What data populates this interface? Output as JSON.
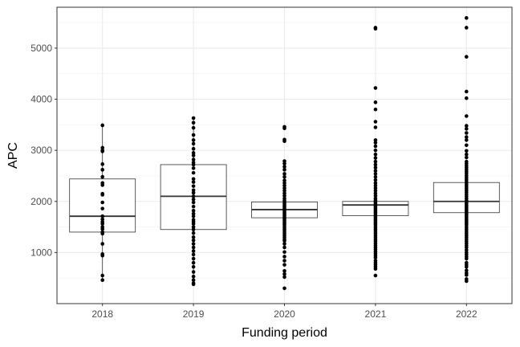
{
  "chart_data": {
    "type": "box",
    "xlabel": "Funding period",
    "ylabel": "APC",
    "ylim": [
      0,
      5800
    ],
    "yticks": [
      1000,
      2000,
      3000,
      4000,
      5000
    ],
    "grid": true,
    "categories": [
      "2018",
      "2019",
      "2020",
      "2021",
      "2022"
    ],
    "boxes": [
      {
        "category": "2018",
        "q1": 1400,
        "median": 1710,
        "q3": 2440,
        "whisker_low": 460,
        "whisker_high": 3480
      },
      {
        "category": "2019",
        "q1": 1450,
        "median": 2100,
        "q3": 2720,
        "whisker_low": 380,
        "whisker_high": 3620
      },
      {
        "category": "2020",
        "q1": 1680,
        "median": 1840,
        "q3": 1990,
        "whisker_low": 1260,
        "whisker_high": 2410
      },
      {
        "category": "2021",
        "q1": 1720,
        "median": 1930,
        "q3": 2000,
        "whisker_low": 1540,
        "whisker_high": 2240
      },
      {
        "category": "2022",
        "q1": 1780,
        "median": 2000,
        "q3": 2370,
        "whisker_low": 1410,
        "whisker_high": 2740
      }
    ],
    "points": [
      {
        "category": "2018",
        "values": [
          3490,
          3050,
          3000,
          2980,
          2730,
          2620,
          2480,
          2360,
          2320,
          2150,
          2130,
          1980,
          1860,
          1710,
          1650,
          1600,
          1560,
          1500,
          1460,
          1400,
          1370,
          1170,
          970,
          940,
          550,
          460
        ]
      },
      {
        "category": "2019",
        "values": [
          3630,
          3540,
          3440,
          3300,
          3200,
          3130,
          3030,
          2950,
          2900,
          2820,
          2760,
          2720,
          2650,
          2560,
          2440,
          2380,
          2300,
          2220,
          2170,
          2100,
          2040,
          1980,
          1900,
          1820,
          1760,
          1710,
          1640,
          1600,
          1560,
          1500,
          1450,
          1380,
          1300,
          1240,
          1170,
          1100,
          1030,
          960,
          880,
          800,
          720,
          620,
          530,
          460,
          400,
          380
        ]
      },
      {
        "category": "2020",
        "values": [
          3460,
          3430,
          3210,
          3180,
          2790,
          2740,
          2680,
          2620,
          2540,
          2480,
          2410,
          2360,
          2310,
          2260,
          2210,
          2160,
          2110,
          2060,
          2020,
          1990,
          1960,
          1930,
          1900,
          1870,
          1840,
          1810,
          1780,
          1750,
          1720,
          1690,
          1660,
          1630,
          1600,
          1570,
          1540,
          1500,
          1460,
          1420,
          1380,
          1340,
          1300,
          1260,
          1230,
          1170,
          1100,
          1010,
          920,
          840,
          760,
          640,
          580,
          520,
          300
        ]
      },
      {
        "category": "2021",
        "values": [
          5400,
          5380,
          4220,
          3940,
          3800,
          3560,
          3450,
          3200,
          3150,
          3080,
          3000,
          2920,
          2850,
          2780,
          2720,
          2660,
          2600,
          2540,
          2480,
          2420,
          2360,
          2310,
          2260,
          2210,
          2160,
          2110,
          2060,
          2020,
          1990,
          1960,
          1930,
          1900,
          1870,
          1840,
          1810,
          1780,
          1750,
          1720,
          1690,
          1660,
          1630,
          1600,
          1570,
          1540,
          1500,
          1460,
          1420,
          1380,
          1340,
          1300,
          1260,
          1220,
          1180,
          1140,
          1100,
          1060,
          1020,
          980,
          940,
          900,
          840,
          800,
          760,
          720,
          680,
          550
        ]
      },
      {
        "category": "2022",
        "values": [
          5590,
          5400,
          4830,
          4150,
          4020,
          3670,
          3480,
          3420,
          3340,
          3260,
          3200,
          3100,
          2990,
          2920,
          2860,
          2780,
          2740,
          2700,
          2660,
          2620,
          2580,
          2540,
          2500,
          2460,
          2420,
          2380,
          2340,
          2300,
          2260,
          2220,
          2180,
          2140,
          2100,
          2060,
          2020,
          1990,
          1960,
          1930,
          1900,
          1870,
          1840,
          1810,
          1780,
          1750,
          1720,
          1690,
          1660,
          1630,
          1600,
          1570,
          1540,
          1500,
          1460,
          1420,
          1380,
          1340,
          1300,
          1260,
          1220,
          1180,
          1140,
          1100,
          1050,
          1000,
          960,
          920,
          880,
          800,
          760,
          720,
          650,
          600,
          560,
          480,
          440
        ]
      }
    ]
  }
}
